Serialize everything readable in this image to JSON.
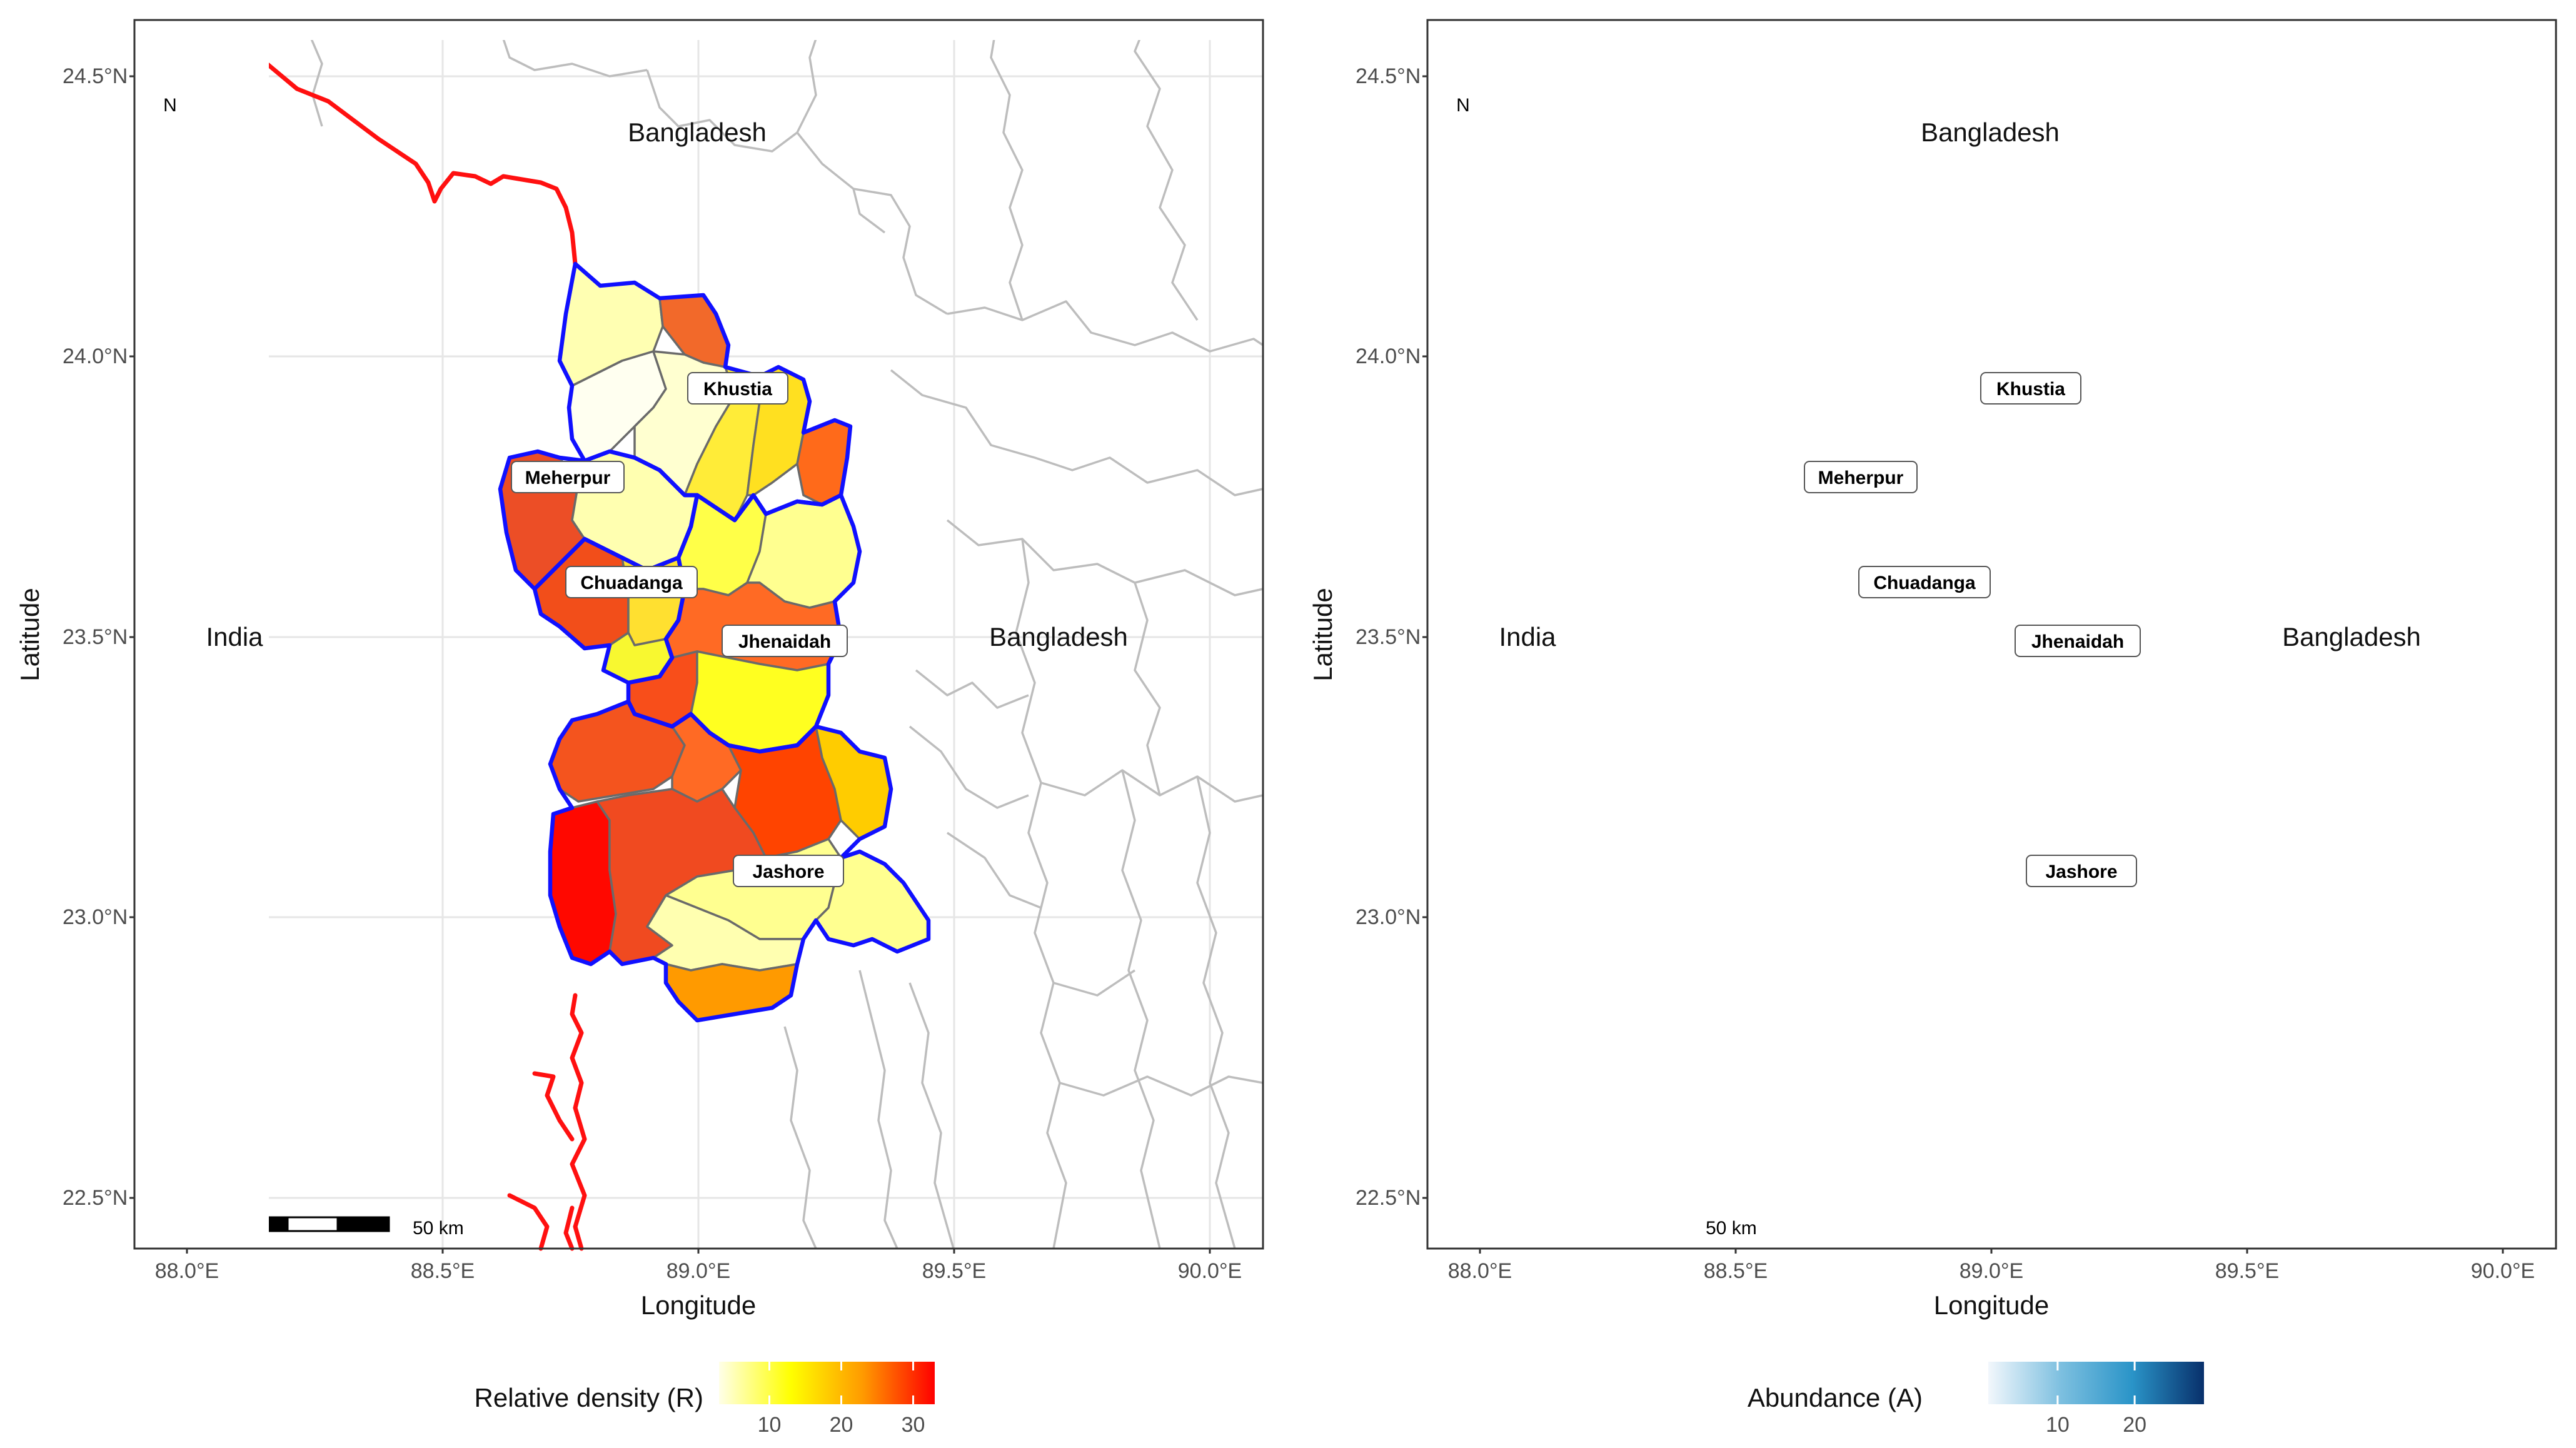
{
  "figure": {
    "panels": [
      {
        "id": "left",
        "x_label": "Longitude",
        "y_label": "Latitude",
        "x_ticks": [
          "88.0°E",
          "88.5°E",
          "89.0°E",
          "89.5°E",
          "90.0°E"
        ],
        "y_ticks": [
          "24.5°N",
          "24.0°N",
          "23.5°N",
          "23.0°N",
          "22.5°N"
        ],
        "north_arrow_label": "N",
        "scale_bar_label": "50 km",
        "country_labels": {
          "bangladesh_top": "Bangladesh",
          "bangladesh_right": "Bangladesh",
          "india": "India"
        },
        "district_labels": {
          "khustia": "Khustia",
          "meherpur": "Meherpur",
          "chuadanga": "Chuadanga",
          "jhenaidah": "Jhenaidah",
          "jashore": "Jashore"
        },
        "legend": {
          "title": "Relative density (R)",
          "ticks": [
            "10",
            "20",
            "30"
          ],
          "tick_values": [
            10,
            20,
            30
          ],
          "min": 3,
          "max": 33,
          "colors": [
            "#ffffe8",
            "#ffff00",
            "#ff9a00",
            "#ff0000"
          ]
        },
        "unit_fills": {
          "khustia_nw": "#ffffb2",
          "khustia_ne": "#f2692a",
          "khustia_w": "#fffff0",
          "khustia_c": "#ffffd0",
          "khustia_e1": "#ffec38",
          "khustia_e2": "#ffe020",
          "khustia_e3": "#ff6a1a",
          "meherpur_w": "#ec4e26",
          "meherpur_e": "#ffffb0",
          "chuadanga_w": "#f24e1a",
          "chuadanga_e": "#ffe030",
          "chuadanga_s": "#f8f830",
          "jhenaidah_n": "#ffff48",
          "jhenaidah_ne": "#ffff90",
          "jhenaidah_c": "#ff6a24",
          "jhenaidah_s": "#ffff20",
          "jhenaidah_sw": "#f84e1a",
          "jashore_nw": "#f4541e",
          "jashore_n": "#ff6a24",
          "jashore_ne": "#ff4400",
          "jashore_e": "#ffcc00",
          "jashore_w": "#ff0800",
          "jashore_c": "#f04a20",
          "jashore_se": "#ffff90",
          "jashore_s": "#ffffb0",
          "jashore_far": "#ffff90",
          "jashore_sb": "#ff9a00"
        }
      },
      {
        "id": "right",
        "x_label": "Longitude",
        "y_label": "Latitude",
        "x_ticks": [
          "88.0°E",
          "88.5°E",
          "89.0°E",
          "89.5°E",
          "90.0°E"
        ],
        "y_ticks": [
          "24.5°N",
          "24.0°N",
          "23.5°N",
          "23.0°N",
          "22.5°N"
        ],
        "north_arrow_label": "N",
        "scale_bar_label": "50 km",
        "country_labels": {
          "bangladesh_top": "Bangladesh",
          "bangladesh_right": "Bangladesh",
          "india": "India"
        },
        "district_labels": {
          "khustia": "Khustia",
          "meherpur": "Meherpur",
          "chuadanga": "Chuadanga",
          "jhenaidah": "Jhenaidah",
          "jashore": "Jashore"
        },
        "legend": {
          "title": "Abundance (A)",
          "ticks": [
            "10",
            "20"
          ],
          "tick_values": [
            10,
            20
          ],
          "min": 1,
          "max": 29,
          "colors": [
            "#f2f7fc",
            "#7ec0e0",
            "#2a94c8",
            "#08306b"
          ]
        },
        "unit_fills": {
          "khustia_nw": "#d4e6f4",
          "khustia_ne": "#1e6fb0",
          "khustia_w": "#f2f7fc",
          "khustia_c": "#dbe9f5",
          "khustia_e1": "#d4e6f4",
          "khustia_e2": "#9acde6",
          "khustia_e3": "#1f80c0",
          "meherpur_w": "#2596cc",
          "meherpur_e": "#dbe9f5",
          "chuadanga_w": "#1e86c0",
          "chuadanga_e": "#d4e6f4",
          "chuadanga_s": "#bcd9ec",
          "jhenaidah_n": "#c3dcee",
          "jhenaidah_ne": "#dbe9f5",
          "jhenaidah_c": "#1a8dc8",
          "jhenaidah_s": "#c8def0",
          "jhenaidah_sw": "#1678bc",
          "jashore_nw": "#08519c",
          "jashore_n": "#1e86c0",
          "jashore_ne": "#1a9ad0",
          "jashore_e": "#8cc6e4",
          "jashore_w": "#08306b",
          "jashore_c": "#0a58a2",
          "jashore_se": "#dbe9f5",
          "jashore_s": "#e2eef8",
          "jashore_far": "#d8e8f4",
          "jashore_sb": "#b8d6ec"
        }
      }
    ]
  }
}
